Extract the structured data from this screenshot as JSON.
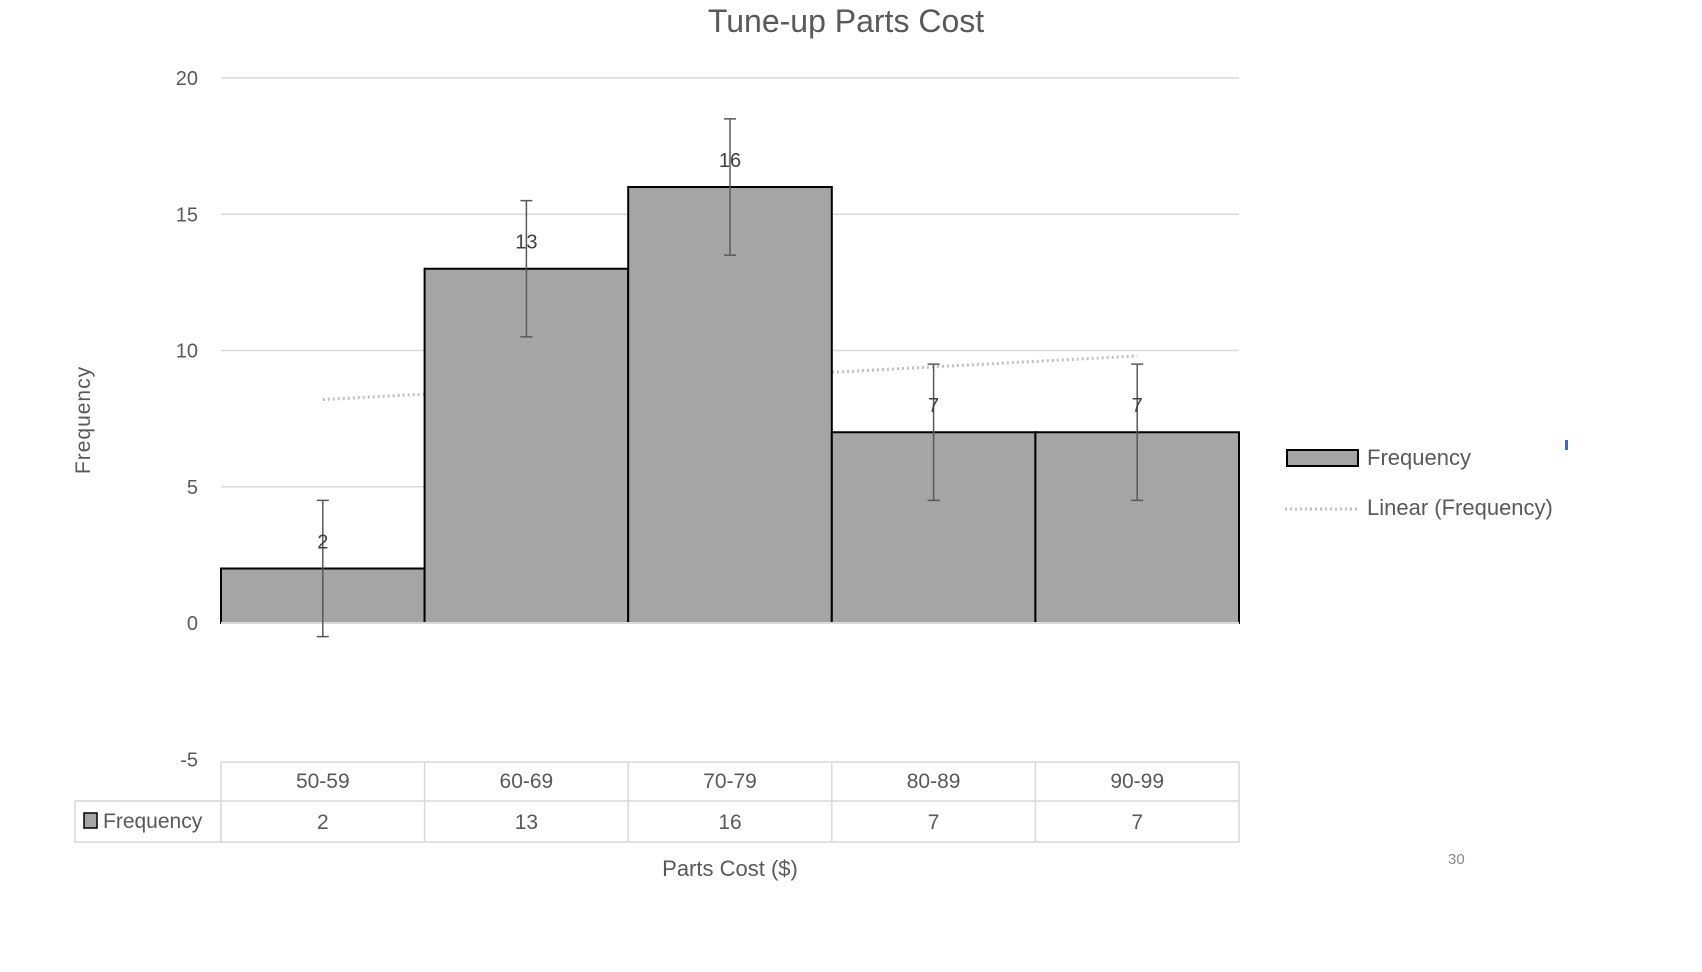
{
  "chart_data": {
    "type": "bar",
    "title": "Tune-up Parts Cost",
    "xlabel": "Parts Cost ($)",
    "ylabel": "Frequency",
    "categories": [
      "50-59",
      "60-69",
      "70-79",
      "80-89",
      "90-99"
    ],
    "series": [
      {
        "name": "Frequency",
        "values": [
          2,
          13,
          16,
          7,
          7
        ]
      }
    ],
    "error_bars": {
      "plus": 2.5,
      "minus": 2.5
    },
    "trendline": {
      "name": "Linear (Frequency)",
      "type": "linear",
      "start": 8.2,
      "end": 9.8
    },
    "ylim": [
      -5,
      20
    ],
    "yticks": [
      -5,
      0,
      5,
      10,
      15,
      20
    ],
    "grid": true,
    "legend": "right",
    "data_table": true,
    "colors": {
      "bar": "#a5a5a5",
      "bar_edge": "#000000",
      "grid": "#d9d9d9",
      "trend": "#bfbfbf",
      "error": "#595959"
    }
  },
  "page_number": "30"
}
